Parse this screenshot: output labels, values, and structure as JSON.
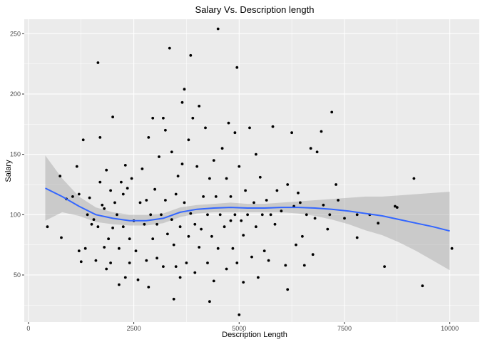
{
  "chart_data": {
    "type": "scatter",
    "title": "Salary Vs. Description length",
    "xlabel": "Description Length",
    "ylabel": "Salary",
    "xlim": [
      -100,
      10700
    ],
    "ylim": [
      11,
      262
    ],
    "x_ticks": [
      0,
      2500,
      5000,
      7500,
      10000
    ],
    "x_tick_labels": [
      "0",
      "2500",
      "5000",
      "7500",
      "10000"
    ],
    "y_ticks": [
      50,
      100,
      150,
      200,
      250
    ],
    "y_tick_labels": [
      "50",
      "100",
      "150",
      "200",
      "250"
    ],
    "grid": true,
    "colors": {
      "panel": "#ebebeb",
      "grid": "#ffffff",
      "points": "#000000",
      "smooth_line": "#3366ff",
      "confidence_band": "#999999"
    },
    "points": [
      [
        450,
        90
      ],
      [
        750,
        132
      ],
      [
        780,
        81
      ],
      [
        900,
        113
      ],
      [
        1050,
        115
      ],
      [
        1200,
        117
      ],
      [
        1150,
        140
      ],
      [
        1200,
        70
      ],
      [
        1250,
        61
      ],
      [
        1300,
        162
      ],
      [
        1350,
        72
      ],
      [
        1400,
        100
      ],
      [
        1450,
        114
      ],
      [
        1500,
        92
      ],
      [
        1550,
        96
      ],
      [
        1600,
        62
      ],
      [
        1650,
        90
      ],
      [
        1650,
        226
      ],
      [
        1700,
        164
      ],
      [
        1700,
        127
      ],
      [
        1750,
        108
      ],
      [
        1800,
        73
      ],
      [
        1800,
        105
      ],
      [
        1850,
        55
      ],
      [
        1850,
        137
      ],
      [
        1900,
        80
      ],
      [
        1950,
        60
      ],
      [
        1950,
        120
      ],
      [
        2000,
        89
      ],
      [
        2000,
        181
      ],
      [
        2050,
        110
      ],
      [
        2100,
        100
      ],
      [
        2150,
        42
      ],
      [
        2150,
        72
      ],
      [
        2200,
        127
      ],
      [
        2250,
        117
      ],
      [
        2250,
        90
      ],
      [
        2300,
        48
      ],
      [
        2300,
        141
      ],
      [
        2350,
        122
      ],
      [
        2400,
        60
      ],
      [
        2400,
        80
      ],
      [
        2450,
        130
      ],
      [
        2500,
        95
      ],
      [
        2550,
        70
      ],
      [
        2600,
        46
      ],
      [
        2650,
        110
      ],
      [
        2700,
        138
      ],
      [
        2750,
        92
      ],
      [
        2800,
        62
      ],
      [
        2800,
        112
      ],
      [
        2850,
        40
      ],
      [
        2850,
        164
      ],
      [
        2900,
        100
      ],
      [
        2950,
        80
      ],
      [
        2950,
        180
      ],
      [
        3000,
        121
      ],
      [
        3050,
        92
      ],
      [
        3050,
        64
      ],
      [
        3100,
        148
      ],
      [
        3150,
        100
      ],
      [
        3200,
        57
      ],
      [
        3200,
        180
      ],
      [
        3250,
        170
      ],
      [
        3250,
        112
      ],
      [
        3300,
        84
      ],
      [
        3350,
        238
      ],
      [
        3400,
        152
      ],
      [
        3400,
        96
      ],
      [
        3450,
        30
      ],
      [
        3450,
        75
      ],
      [
        3500,
        117
      ],
      [
        3500,
        57
      ],
      [
        3550,
        132
      ],
      [
        3600,
        90
      ],
      [
        3600,
        48
      ],
      [
        3650,
        193
      ],
      [
        3650,
        142
      ],
      [
        3700,
        204
      ],
      [
        3700,
        110
      ],
      [
        3750,
        60
      ],
      [
        3800,
        82
      ],
      [
        3800,
        162
      ],
      [
        3850,
        232
      ],
      [
        3850,
        101
      ],
      [
        3900,
        180
      ],
      [
        3950,
        92
      ],
      [
        3950,
        52
      ],
      [
        4000,
        140
      ],
      [
        4050,
        73
      ],
      [
        4050,
        190
      ],
      [
        4100,
        88
      ],
      [
        4150,
        115
      ],
      [
        4200,
        172
      ],
      [
        4250,
        100
      ],
      [
        4250,
        60
      ],
      [
        4300,
        28
      ],
      [
        4300,
        130
      ],
      [
        4350,
        82
      ],
      [
        4400,
        45
      ],
      [
        4400,
        145
      ],
      [
        4450,
        115
      ],
      [
        4500,
        254
      ],
      [
        4500,
        72
      ],
      [
        4550,
        100
      ],
      [
        4600,
        155
      ],
      [
        4650,
        90
      ],
      [
        4700,
        130
      ],
      [
        4700,
        55
      ],
      [
        4750,
        176
      ],
      [
        4800,
        95
      ],
      [
        4800,
        115
      ],
      [
        4850,
        72
      ],
      [
        4900,
        168
      ],
      [
        4900,
        100
      ],
      [
        4950,
        222
      ],
      [
        4950,
        60
      ],
      [
        5000,
        17
      ],
      [
        5000,
        140
      ],
      [
        5050,
        95
      ],
      [
        5100,
        83
      ],
      [
        5100,
        44
      ],
      [
        5150,
        120
      ],
      [
        5200,
        100
      ],
      [
        5250,
        172
      ],
      [
        5300,
        65
      ],
      [
        5350,
        110
      ],
      [
        5400,
        150
      ],
      [
        5400,
        90
      ],
      [
        5450,
        48
      ],
      [
        5500,
        131
      ],
      [
        5550,
        100
      ],
      [
        5600,
        70
      ],
      [
        5650,
        112
      ],
      [
        5700,
        62
      ],
      [
        5750,
        100
      ],
      [
        5800,
        173
      ],
      [
        5850,
        92
      ],
      [
        5900,
        120
      ],
      [
        6000,
        103
      ],
      [
        6100,
        58
      ],
      [
        6150,
        38
      ],
      [
        6150,
        125
      ],
      [
        6250,
        168
      ],
      [
        6300,
        107
      ],
      [
        6350,
        75
      ],
      [
        6400,
        118
      ],
      [
        6450,
        110
      ],
      [
        6500,
        82
      ],
      [
        6550,
        58
      ],
      [
        6600,
        100
      ],
      [
        6700,
        155
      ],
      [
        6750,
        67
      ],
      [
        6800,
        97
      ],
      [
        6850,
        152
      ],
      [
        6950,
        169
      ],
      [
        7000,
        108
      ],
      [
        7100,
        88
      ],
      [
        7150,
        100
      ],
      [
        7200,
        185
      ],
      [
        7300,
        125
      ],
      [
        7350,
        112
      ],
      [
        7500,
        97
      ],
      [
        7800,
        81
      ],
      [
        7800,
        100
      ],
      [
        8100,
        100
      ],
      [
        8300,
        93
      ],
      [
        8450,
        57
      ],
      [
        8700,
        107
      ],
      [
        8750,
        106
      ],
      [
        9150,
        130
      ],
      [
        9350,
        41
      ],
      [
        10050,
        72
      ]
    ],
    "smooth_curve": [
      [
        400,
        122
      ],
      [
        800,
        115
      ],
      [
        1200,
        107
      ],
      [
        1600,
        100
      ],
      [
        2000,
        97
      ],
      [
        2400,
        95
      ],
      [
        2800,
        95
      ],
      [
        3200,
        97
      ],
      [
        3600,
        102
      ],
      [
        4000,
        104.5
      ],
      [
        4400,
        105.5
      ],
      [
        4800,
        106
      ],
      [
        5200,
        105.5
      ],
      [
        5600,
        105.5
      ],
      [
        6000,
        106
      ],
      [
        6400,
        106
      ],
      [
        6800,
        105.5
      ],
      [
        7200,
        104.5
      ],
      [
        7600,
        103
      ],
      [
        8000,
        101
      ],
      [
        8400,
        99
      ],
      [
        8800,
        96
      ],
      [
        9200,
        93
      ],
      [
        9600,
        90
      ],
      [
        10000,
        86.5
      ]
    ],
    "confidence_band": [
      [
        400,
        149,
        95
      ],
      [
        800,
        130,
        102
      ],
      [
        1200,
        115,
        99
      ],
      [
        1600,
        106,
        94
      ],
      [
        2000,
        102,
        92
      ],
      [
        2400,
        100,
        91
      ],
      [
        2800,
        100,
        91
      ],
      [
        3200,
        101,
        93
      ],
      [
        3600,
        106,
        98
      ],
      [
        4000,
        108,
        101
      ],
      [
        4400,
        109,
        102
      ],
      [
        4800,
        110,
        102
      ],
      [
        5200,
        109,
        102
      ],
      [
        5600,
        109,
        102
      ],
      [
        6000,
        110,
        102
      ],
      [
        6400,
        111,
        101
      ],
      [
        6800,
        112,
        99
      ],
      [
        7200,
        113,
        96
      ],
      [
        7600,
        114,
        92
      ],
      [
        8000,
        115,
        87
      ],
      [
        8400,
        115,
        83
      ],
      [
        8800,
        116,
        77
      ],
      [
        9200,
        117,
        70
      ],
      [
        9600,
        118,
        62
      ],
      [
        10000,
        119,
        54
      ]
    ]
  }
}
